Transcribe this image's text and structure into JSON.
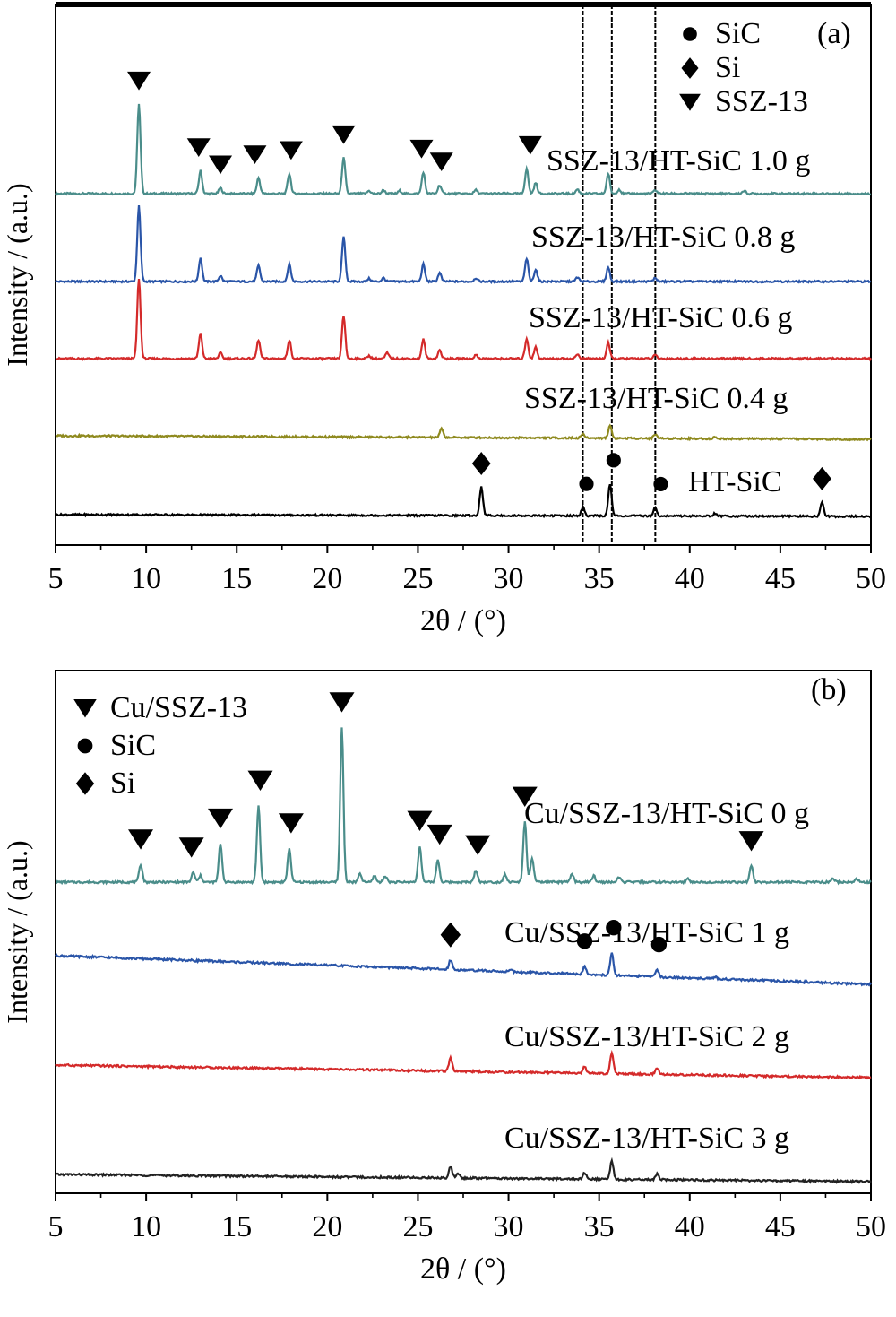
{
  "chart_data": [
    {
      "panel_label": "(a)",
      "type": "line",
      "xlabel": "2θ / (°)",
      "ylabel": "Intensity / (a.u.)",
      "xlim": [
        5,
        50
      ],
      "x_ticks": [
        "5",
        "10",
        "15",
        "20",
        "25",
        "30",
        "35",
        "40",
        "45",
        "50"
      ],
      "reference_lines_x": [
        34.1,
        35.7,
        38.1
      ],
      "legend": [
        {
          "symbol": "circle",
          "label": "SiC"
        },
        {
          "symbol": "diamond",
          "label": "Si"
        },
        {
          "symbol": "triangle-down",
          "label": "SSZ-13"
        }
      ],
      "series": [
        {
          "name": "SSZ-13/HT-SiC 1.0 g",
          "color": "#4a8d8a",
          "offset": 4.0,
          "peaks": [
            [
              9.6,
              1.25
            ],
            [
              13.0,
              0.32
            ],
            [
              14.1,
              0.08
            ],
            [
              16.2,
              0.22
            ],
            [
              17.9,
              0.28
            ],
            [
              20.9,
              0.5
            ],
            [
              22.3,
              0.04
            ],
            [
              23.1,
              0.05
            ],
            [
              24.0,
              0.04
            ],
            [
              25.3,
              0.3
            ],
            [
              26.2,
              0.12
            ],
            [
              28.2,
              0.05
            ],
            [
              31.0,
              0.35
            ],
            [
              31.5,
              0.15
            ],
            [
              33.8,
              0.06
            ],
            [
              35.5,
              0.28
            ],
            [
              36.1,
              0.06
            ],
            [
              38.1,
              0.05
            ],
            [
              43.0,
              0.04
            ]
          ],
          "markers": [
            [
              "triangle-down",
              9.6
            ],
            [
              "triangle-down",
              12.9
            ],
            [
              "triangle-down",
              14.1
            ],
            [
              "triangle-down",
              16.0
            ],
            [
              "triangle-down",
              18.0
            ],
            [
              "triangle-down",
              20.9
            ],
            [
              "triangle-down",
              25.2
            ],
            [
              "triangle-down",
              26.3
            ],
            [
              "triangle-down",
              31.2
            ]
          ]
        },
        {
          "name": "SSZ-13/HT-SiC 0.8 g",
          "color": "#2a55a8",
          "offset": 3.0,
          "peaks": [
            [
              9.6,
              1.05
            ],
            [
              13.0,
              0.33
            ],
            [
              14.1,
              0.08
            ],
            [
              16.2,
              0.22
            ],
            [
              17.9,
              0.24
            ],
            [
              20.9,
              0.62
            ],
            [
              22.3,
              0.04
            ],
            [
              23.1,
              0.05
            ],
            [
              25.3,
              0.24
            ],
            [
              26.2,
              0.12
            ],
            [
              28.2,
              0.05
            ],
            [
              31.0,
              0.32
            ],
            [
              31.5,
              0.17
            ],
            [
              33.8,
              0.06
            ],
            [
              35.5,
              0.2
            ],
            [
              38.1,
              0.05
            ]
          ],
          "markers": []
        },
        {
          "name": "SSZ-13/HT-SiC 0.6 g",
          "color": "#d42a2a",
          "offset": 2.0,
          "peaks": [
            [
              9.6,
              1.12
            ],
            [
              13.0,
              0.35
            ],
            [
              14.1,
              0.08
            ],
            [
              16.2,
              0.26
            ],
            [
              17.9,
              0.26
            ],
            [
              20.9,
              0.6
            ],
            [
              22.3,
              0.04
            ],
            [
              23.3,
              0.08
            ],
            [
              25.3,
              0.27
            ],
            [
              26.2,
              0.12
            ],
            [
              28.2,
              0.05
            ],
            [
              31.0,
              0.28
            ],
            [
              31.5,
              0.16
            ],
            [
              33.8,
              0.06
            ],
            [
              35.5,
              0.22
            ],
            [
              38.1,
              0.05
            ]
          ],
          "markers": []
        },
        {
          "name": "SSZ-13/HT-SiC 0.4 g",
          "color": "#8f8a1f",
          "offset": 1.0,
          "peaks": [
            [
              26.3,
              0.12
            ],
            [
              34.1,
              0.06
            ],
            [
              35.6,
              0.18
            ],
            [
              38.1,
              0.06
            ],
            [
              41.4,
              0.02
            ]
          ],
          "markers": []
        },
        {
          "name": "HT-SiC",
          "color": "#000000",
          "offset": 0.0,
          "peaks": [
            [
              28.5,
              0.4
            ],
            [
              34.1,
              0.12
            ],
            [
              35.6,
              0.45
            ],
            [
              38.1,
              0.12
            ],
            [
              41.4,
              0.04
            ],
            [
              47.3,
              0.2
            ]
          ],
          "markers": [
            [
              "diamond",
              28.5
            ],
            [
              "circle",
              34.3
            ],
            [
              "circle",
              35.8
            ],
            [
              "circle",
              38.4
            ],
            [
              "diamond",
              47.3
            ]
          ]
        }
      ]
    },
    {
      "panel_label": "(b)",
      "type": "line",
      "xlabel": "2θ / (°)",
      "ylabel": "Intensity / (a.u.)",
      "xlim": [
        5,
        50
      ],
      "x_ticks": [
        "5",
        "10",
        "15",
        "20",
        "25",
        "30",
        "35",
        "40",
        "45",
        "50"
      ],
      "reference_lines_x": [],
      "legend": [
        {
          "symbol": "triangle-down",
          "label": "Cu/SSZ-13"
        },
        {
          "symbol": "circle",
          "label": "SiC"
        },
        {
          "symbol": "diamond",
          "label": "Si"
        }
      ],
      "series": [
        {
          "name": "Cu/SSZ-13/HT-SiC 0 g",
          "color": "#4a8d8a",
          "offset": 3.0,
          "peaks": [
            [
              9.7,
              0.22
            ],
            [
              12.6,
              0.12
            ],
            [
              13.0,
              0.08
            ],
            [
              14.1,
              0.48
            ],
            [
              16.2,
              0.95
            ],
            [
              17.9,
              0.42
            ],
            [
              20.8,
              1.92
            ],
            [
              21.8,
              0.1
            ],
            [
              22.6,
              0.08
            ],
            [
              23.2,
              0.08
            ],
            [
              25.1,
              0.45
            ],
            [
              26.1,
              0.28
            ],
            [
              28.2,
              0.15
            ],
            [
              29.8,
              0.1
            ],
            [
              30.9,
              0.75
            ],
            [
              31.3,
              0.3
            ],
            [
              33.5,
              0.1
            ],
            [
              34.7,
              0.08
            ],
            [
              36.1,
              0.06
            ],
            [
              39.9,
              0.04
            ],
            [
              43.4,
              0.2
            ],
            [
              47.9,
              0.05
            ],
            [
              49.2,
              0.04
            ]
          ],
          "markers": [
            [
              "triangle-down",
              9.7
            ],
            [
              "triangle-down",
              12.5
            ],
            [
              "triangle-down",
              14.1
            ],
            [
              "triangle-down",
              16.3
            ],
            [
              "triangle-down",
              18.0
            ],
            [
              "triangle-down",
              20.8
            ],
            [
              "triangle-down",
              25.1
            ],
            [
              "triangle-down",
              26.2
            ],
            [
              "triangle-down",
              28.3
            ],
            [
              "triangle-down",
              30.9
            ],
            [
              "triangle-down",
              43.4
            ]
          ]
        },
        {
          "name": "Cu/SSZ-13/HT-SiC 1 g",
          "color": "#2a55a8",
          "offset": 2.0,
          "peaks": [
            [
              26.8,
              0.12
            ],
            [
              30.1,
              0.03
            ],
            [
              34.2,
              0.1
            ],
            [
              35.7,
              0.28
            ],
            [
              38.2,
              0.09
            ],
            [
              41.4,
              0.03
            ]
          ],
          "markers": [
            [
              "diamond",
              26.8
            ],
            [
              "circle",
              34.2
            ],
            [
              "circle",
              35.8
            ],
            [
              "circle",
              38.3
            ]
          ]
        },
        {
          "name": "Cu/SSZ-13/HT-SiC 2 g",
          "color": "#d42a2a",
          "offset": 1.0,
          "peaks": [
            [
              26.8,
              0.16
            ],
            [
              34.2,
              0.08
            ],
            [
              35.7,
              0.25
            ],
            [
              38.2,
              0.08
            ]
          ],
          "markers": []
        },
        {
          "name": "Cu/SSZ-13/HT-SiC 3 g",
          "color": "#222222",
          "offset": 0.0,
          "peaks": [
            [
              26.8,
              0.14
            ],
            [
              27.2,
              0.06
            ],
            [
              34.2,
              0.08
            ],
            [
              35.7,
              0.22
            ],
            [
              38.2,
              0.07
            ]
          ],
          "markers": []
        }
      ]
    }
  ]
}
